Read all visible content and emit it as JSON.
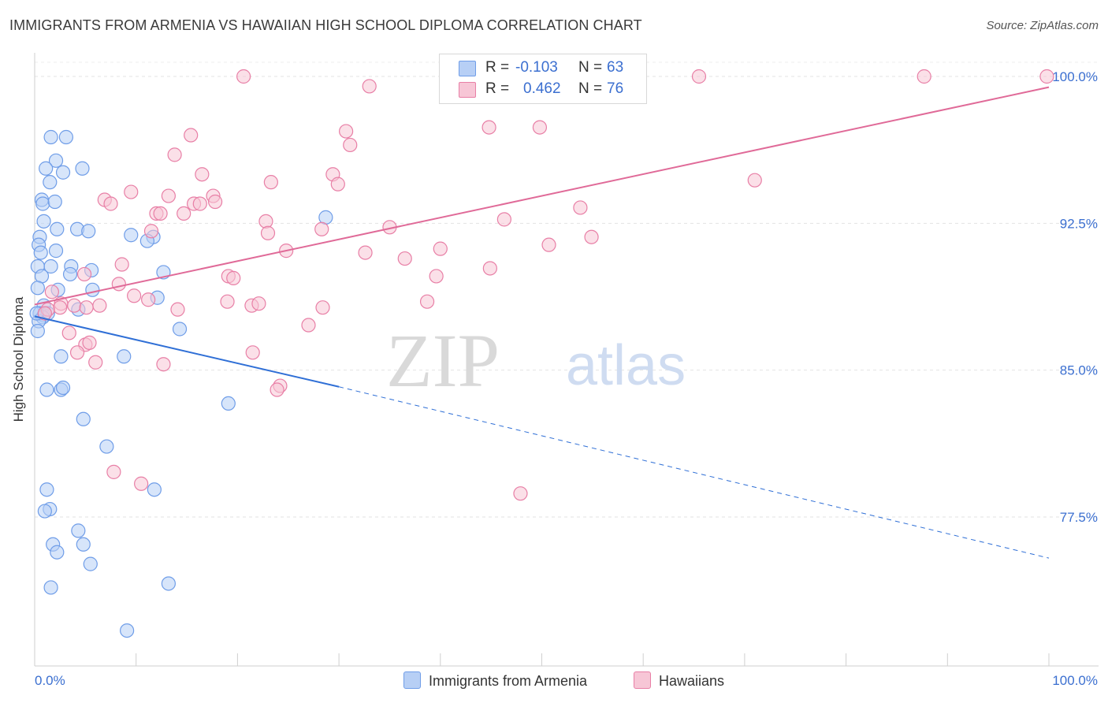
{
  "title": "IMMIGRANTS FROM ARMENIA VS HAWAIIAN HIGH SCHOOL DIPLOMA CORRELATION CHART",
  "source": "Source: ZipAtlas.com",
  "watermark": {
    "zip": "ZIP",
    "atlas": "atlas"
  },
  "legend": {
    "rows": [
      {
        "r_label": "R =",
        "r_value": "-0.103",
        "n_label": "N =",
        "n_value": "63"
      },
      {
        "r_label": "R =",
        "r_value": "0.462",
        "n_label": "N =",
        "n_value": "76"
      }
    ]
  },
  "bottom_legend": {
    "series1": "Immigrants from Armenia",
    "series2": "Hawaiians"
  },
  "chart_data": {
    "type": "scatter",
    "ylabel": "High School Diploma",
    "xlim": [
      0,
      100
    ],
    "ylim": [
      71.0,
      101.0
    ],
    "y_ticks": [
      {
        "value": 100.0,
        "label": "100.0%"
      },
      {
        "value": 92.5,
        "label": "92.5%"
      },
      {
        "value": 85.0,
        "label": "85.0%"
      },
      {
        "value": 77.5,
        "label": "77.5%"
      }
    ],
    "x_tick_labels": {
      "min": "0.0%",
      "max": "100.0%"
    },
    "series": [
      {
        "name": "Immigrants from Armenia",
        "color": "#6f9de8",
        "fill": "#b7cff5",
        "trend": {
          "x0": 0,
          "y0": 87.75,
          "x1": 30,
          "y1": 84.15,
          "dash_to_x": 100,
          "dash_to_y": 75.4
        },
        "points": [
          [
            1.6,
            96.9
          ],
          [
            3.1,
            96.9
          ],
          [
            2.1,
            95.7
          ],
          [
            1.1,
            95.3
          ],
          [
            2.8,
            95.1
          ],
          [
            4.7,
            95.3
          ],
          [
            1.5,
            94.6
          ],
          [
            0.7,
            93.7
          ],
          [
            0.8,
            93.5
          ],
          [
            2.0,
            93.6
          ],
          [
            0.9,
            92.6
          ],
          [
            2.2,
            92.2
          ],
          [
            4.2,
            92.2
          ],
          [
            5.3,
            92.1
          ],
          [
            0.5,
            91.8
          ],
          [
            0.4,
            91.4
          ],
          [
            0.6,
            91.0
          ],
          [
            2.1,
            91.1
          ],
          [
            9.5,
            91.9
          ],
          [
            11.7,
            91.8
          ],
          [
            11.1,
            91.6
          ],
          [
            0.3,
            90.3
          ],
          [
            1.6,
            90.3
          ],
          [
            3.6,
            90.3
          ],
          [
            5.6,
            90.1
          ],
          [
            3.5,
            89.9
          ],
          [
            0.7,
            89.8
          ],
          [
            12.7,
            90.0
          ],
          [
            0.3,
            89.2
          ],
          [
            2.3,
            89.1
          ],
          [
            5.7,
            89.1
          ],
          [
            12.1,
            88.7
          ],
          [
            0.9,
            88.3
          ],
          [
            0.9,
            87.8
          ],
          [
            4.3,
            88.1
          ],
          [
            0.5,
            87.9
          ],
          [
            1.3,
            87.9
          ],
          [
            0.8,
            87.7
          ],
          [
            0.4,
            87.5
          ],
          [
            0.3,
            87.0
          ],
          [
            14.3,
            87.1
          ],
          [
            2.6,
            85.7
          ],
          [
            8.8,
            85.7
          ],
          [
            28.7,
            92.8
          ],
          [
            1.2,
            84.0
          ],
          [
            2.6,
            84.0
          ],
          [
            2.8,
            84.1
          ],
          [
            19.1,
            83.3
          ],
          [
            4.8,
            82.5
          ],
          [
            7.1,
            81.1
          ],
          [
            11.8,
            78.9
          ],
          [
            1.2,
            78.9
          ],
          [
            1.5,
            77.9
          ],
          [
            1.0,
            77.8
          ],
          [
            4.3,
            76.8
          ],
          [
            1.8,
            76.1
          ],
          [
            4.8,
            76.1
          ],
          [
            2.2,
            75.7
          ],
          [
            5.5,
            75.1
          ],
          [
            1.6,
            73.9
          ],
          [
            13.2,
            74.1
          ],
          [
            9.1,
            71.7
          ],
          [
            0.2,
            87.9
          ]
        ]
      },
      {
        "name": "Hawaiians",
        "color": "#e87fa6",
        "fill": "#f7c6d6",
        "trend": {
          "x0": 0,
          "y0": 88.35,
          "x1": 100,
          "y1": 99.45
        },
        "points": [
          [
            20.6,
            100.0
          ],
          [
            33.0,
            99.5
          ],
          [
            65.5,
            100.0
          ],
          [
            87.7,
            100.0
          ],
          [
            99.8,
            100.0
          ],
          [
            44.8,
            97.4
          ],
          [
            49.8,
            97.4
          ],
          [
            15.4,
            97.0
          ],
          [
            30.7,
            97.2
          ],
          [
            31.1,
            96.5
          ],
          [
            13.8,
            96.0
          ],
          [
            16.5,
            95.0
          ],
          [
            29.4,
            95.0
          ],
          [
            29.9,
            94.5
          ],
          [
            23.3,
            94.6
          ],
          [
            71.0,
            94.7
          ],
          [
            9.5,
            94.1
          ],
          [
            13.2,
            93.9
          ],
          [
            17.6,
            93.9
          ],
          [
            6.9,
            93.7
          ],
          [
            7.5,
            93.5
          ],
          [
            15.7,
            93.5
          ],
          [
            16.3,
            93.5
          ],
          [
            17.8,
            93.6
          ],
          [
            12.0,
            93.0
          ],
          [
            12.4,
            93.0
          ],
          [
            14.7,
            93.0
          ],
          [
            53.8,
            93.3
          ],
          [
            22.8,
            92.6
          ],
          [
            35.0,
            92.3
          ],
          [
            46.3,
            92.7
          ],
          [
            28.3,
            92.2
          ],
          [
            23.0,
            92.0
          ],
          [
            11.5,
            92.1
          ],
          [
            54.9,
            91.8
          ],
          [
            50.7,
            91.4
          ],
          [
            40.0,
            91.2
          ],
          [
            24.8,
            91.1
          ],
          [
            32.6,
            91.0
          ],
          [
            36.5,
            90.7
          ],
          [
            8.6,
            90.4
          ],
          [
            44.9,
            90.2
          ],
          [
            4.9,
            89.9
          ],
          [
            19.1,
            89.8
          ],
          [
            19.6,
            89.7
          ],
          [
            39.6,
            89.8
          ],
          [
            8.3,
            89.4
          ],
          [
            1.7,
            89.0
          ],
          [
            9.8,
            88.8
          ],
          [
            2.6,
            88.4
          ],
          [
            3.9,
            88.3
          ],
          [
            6.4,
            88.3
          ],
          [
            19.0,
            88.5
          ],
          [
            11.2,
            88.6
          ],
          [
            21.4,
            88.3
          ],
          [
            22.1,
            88.4
          ],
          [
            38.7,
            88.5
          ],
          [
            14.1,
            88.1
          ],
          [
            28.4,
            88.2
          ],
          [
            2.5,
            88.2
          ],
          [
            1.3,
            88.1
          ],
          [
            5.1,
            88.2
          ],
          [
            27.0,
            87.3
          ],
          [
            1.0,
            87.9
          ],
          [
            3.4,
            86.9
          ],
          [
            5.0,
            86.3
          ],
          [
            5.4,
            86.4
          ],
          [
            4.2,
            85.9
          ],
          [
            21.5,
            85.9
          ],
          [
            6.0,
            85.4
          ],
          [
            12.7,
            85.3
          ],
          [
            24.2,
            84.2
          ],
          [
            23.9,
            84.0
          ],
          [
            7.8,
            79.8
          ],
          [
            10.5,
            79.2
          ],
          [
            47.9,
            78.7
          ]
        ]
      }
    ]
  }
}
